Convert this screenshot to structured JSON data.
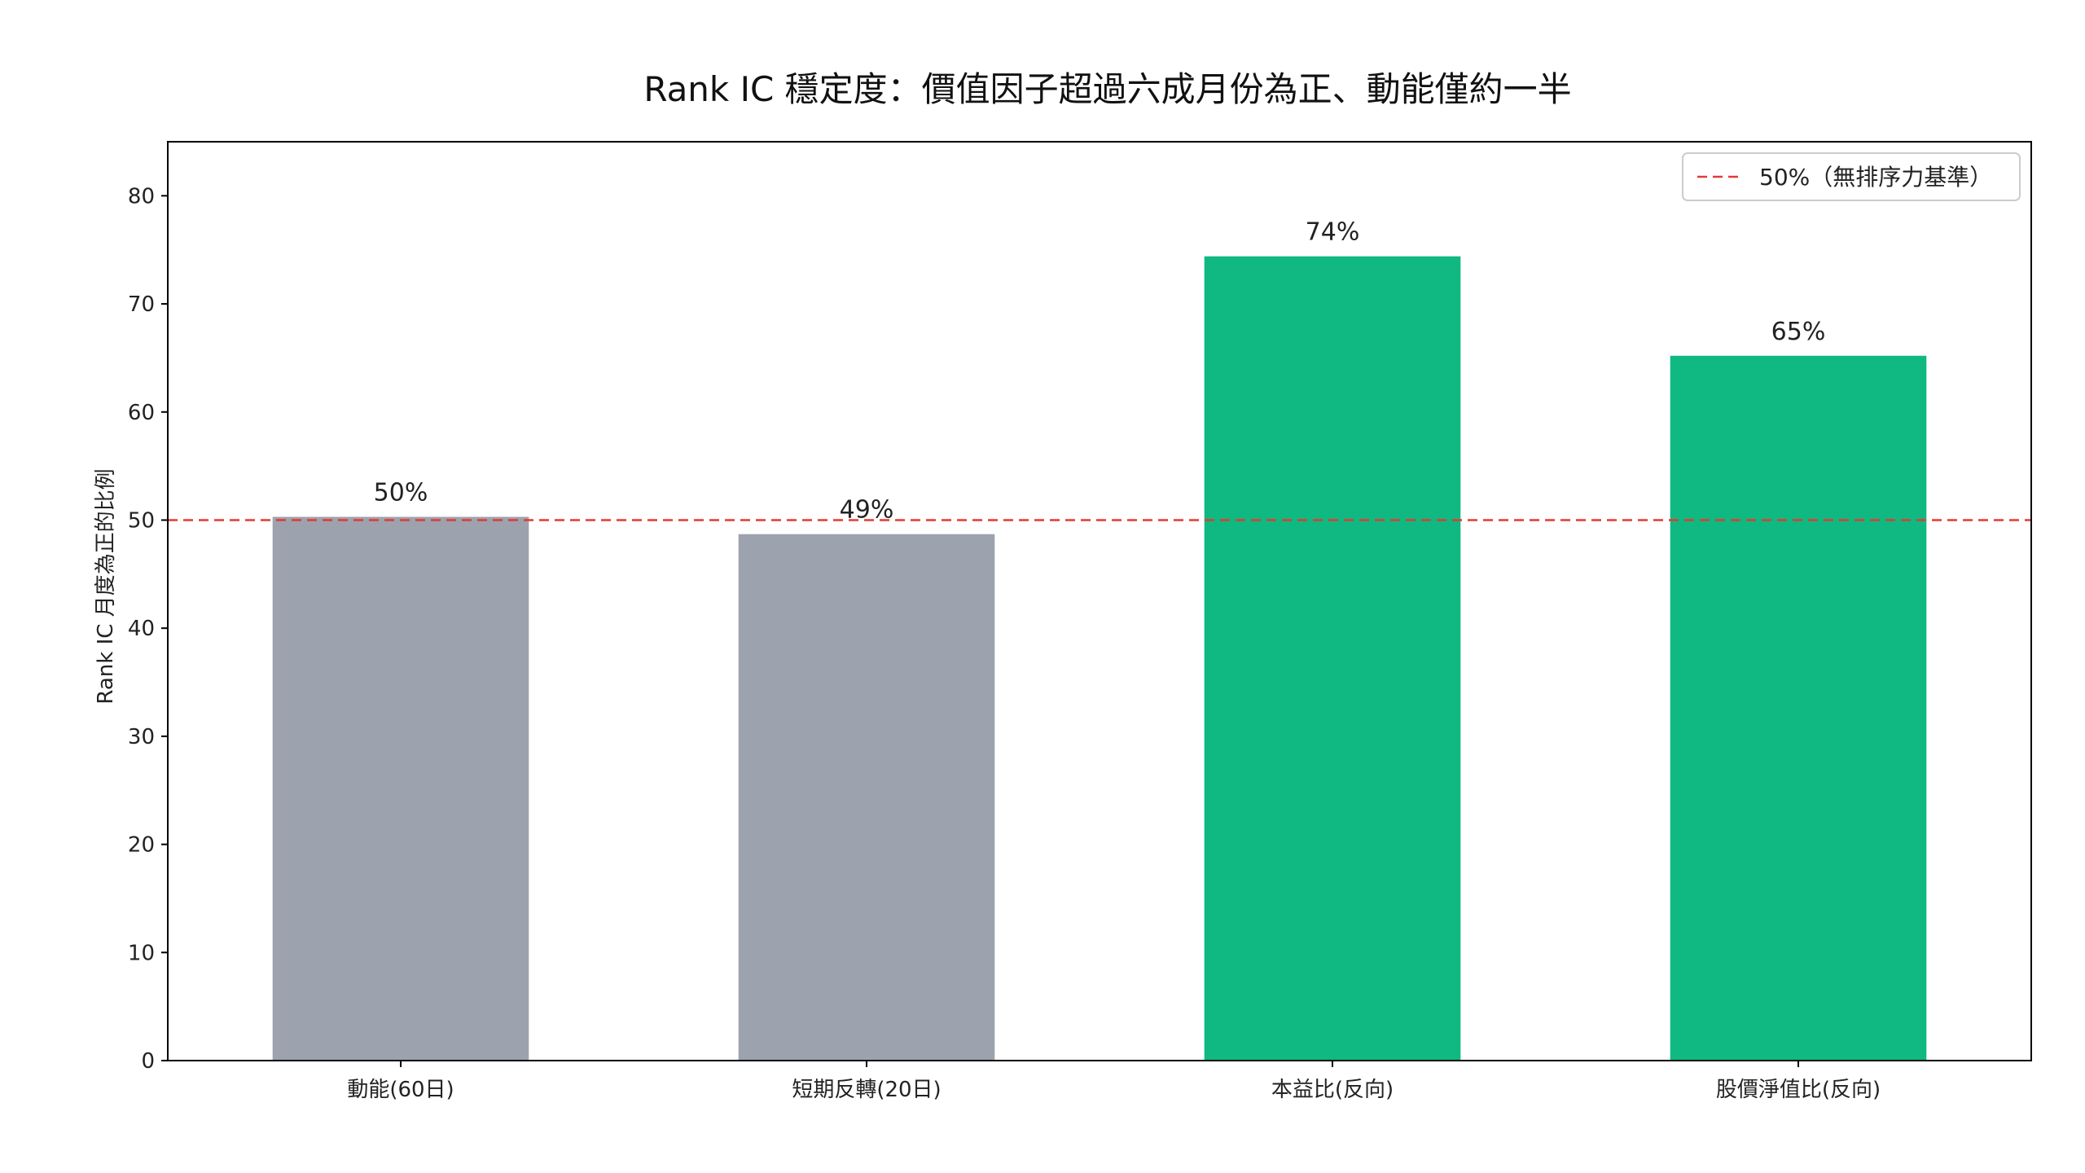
{
  "chart_data": {
    "type": "bar",
    "title": "Rank IC 穩定度：價值因子超過六成月份為正、動能僅約一半",
    "xlabel": "",
    "ylabel": "Rank IC 月度為正的比例",
    "ylim": [
      0,
      85
    ],
    "yticks": [
      0,
      10,
      20,
      30,
      40,
      50,
      60,
      70,
      80
    ],
    "categories": [
      "動能(60日)",
      "短期反轉(20日)",
      "本益比(反向)",
      "股價淨值比(反向)"
    ],
    "values": [
      50.3,
      48.7,
      74.4,
      65.2
    ],
    "value_labels": [
      "50%",
      "49%",
      "74%",
      "65%"
    ],
    "bar_colors": [
      "#9ca3af",
      "#9ca3af",
      "#10b981",
      "#10b981"
    ],
    "reference_line": {
      "value": 50,
      "label": "50%（無排序力基準）",
      "color": "#e53935",
      "style": "dashed"
    },
    "legend": {
      "position": "top-right",
      "entries": [
        "50%（無排序力基準）"
      ]
    },
    "grid": false
  }
}
